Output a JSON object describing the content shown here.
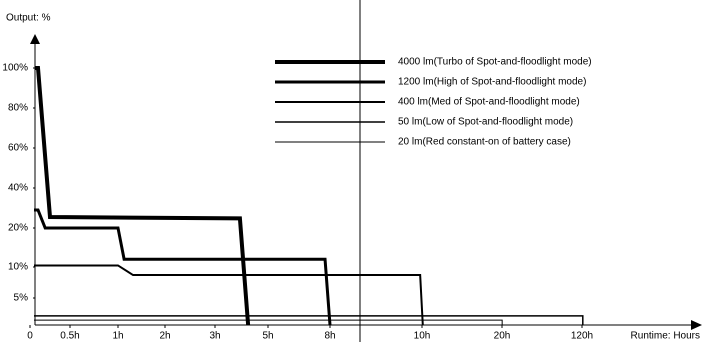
{
  "chart_data": {
    "type": "line",
    "y_label": "Output: %",
    "x_label": "Runtime: Hours",
    "ylim": [
      0,
      100
    ],
    "yticks": [
      {
        "value": 5,
        "label": "5%"
      },
      {
        "value": 10,
        "label": "10%"
      },
      {
        "value": 20,
        "label": "20%"
      },
      {
        "value": 40,
        "label": "40%"
      },
      {
        "value": 60,
        "label": "60%"
      },
      {
        "value": 80,
        "label": "80%"
      },
      {
        "value": 100,
        "label": "100%"
      }
    ],
    "xlim": [
      0,
      120
    ],
    "xticks": [
      0,
      {
        "value": 0.5,
        "label": "0.5h"
      },
      {
        "value": 1,
        "label": "1h"
      },
      {
        "value": 2,
        "label": "2h"
      },
      {
        "value": 3,
        "label": "3h"
      },
      {
        "value": 5,
        "label": "5h"
      },
      {
        "value": 8,
        "label": "8h"
      },
      {
        "value": 10,
        "label": "10h"
      },
      {
        "value": 20,
        "label": "20h"
      },
      {
        "value": 120,
        "label": "120h"
      }
    ],
    "series": [
      {
        "name": "4000 lm(Turbo of Spot-and-floodlight mode)",
        "color": "#000000",
        "width": 4,
        "x": [
          0.06,
          0.1,
          0.25,
          3.94,
          4.25
        ],
        "values": [
          100,
          100,
          25.5,
          24.8,
          0
        ]
      },
      {
        "name": "1200 lm(High of Spot-and-floodlight mode)",
        "color": "#000000",
        "width": 3,
        "x": [
          0.05,
          0.1,
          0.19,
          1,
          1.13,
          7.76,
          8
        ],
        "values": [
          29,
          29,
          20,
          20,
          12,
          12,
          0
        ]
      },
      {
        "name": "400 lm(Med of Spot-and-floodlight mode)",
        "color": "#000000",
        "width": 2,
        "x": [
          0.05,
          1,
          1.32,
          9.96,
          10.1
        ],
        "values": [
          10.4,
          10.4,
          8.7,
          8.7,
          0
        ]
      },
      {
        "name": "50 lm(Low of Spot-and-floodlight mode)",
        "color": "#000000",
        "width": 1.5,
        "x": [
          0.05,
          121,
          121
        ],
        "values": [
          1.7,
          1.7,
          0
        ]
      },
      {
        "name": "20 lm(Red constant-on of battery case)",
        "color": "#000000",
        "width": 1,
        "x": [
          0.05,
          20.2,
          20.2
        ],
        "values": [
          0.9,
          0.9,
          0
        ]
      }
    ]
  }
}
